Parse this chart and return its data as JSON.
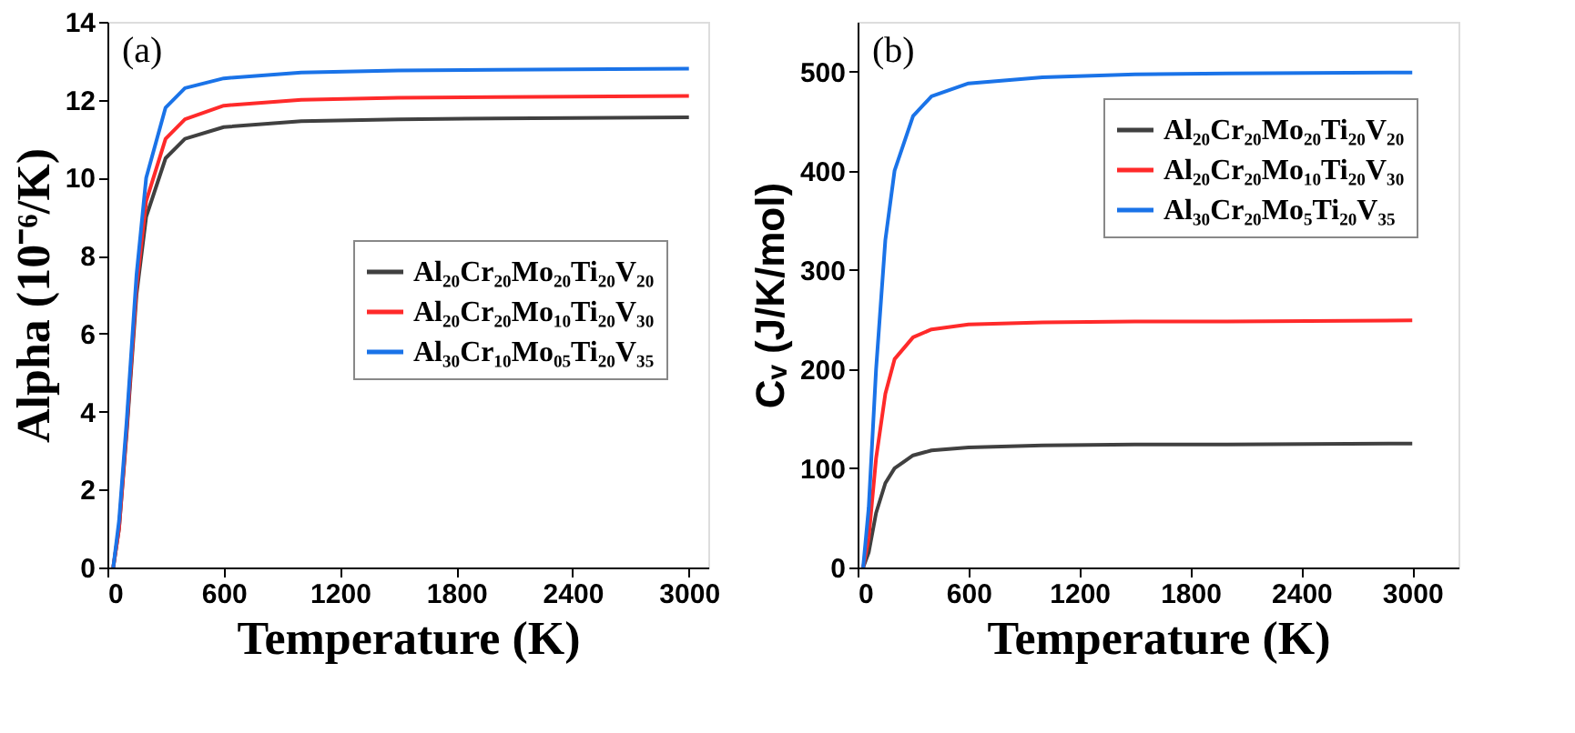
{
  "chart_data": [
    {
      "type": "line",
      "xlabel": "Temperature (K)",
      "ylabel": "Alpha (10⁻⁶/K)",
      "annotations": [
        "(a)"
      ],
      "x": [
        30,
        60,
        100,
        150,
        200,
        300,
        400,
        600,
        1000,
        1500,
        2000,
        3000
      ],
      "xlim": [
        0,
        3100
      ],
      "xticks": [
        0,
        600,
        1200,
        1800,
        2400,
        3000
      ],
      "ylim": [
        0,
        14
      ],
      "yticks": [
        0,
        2,
        4,
        6,
        8,
        10,
        12,
        14
      ],
      "legend": "right",
      "grid": false,
      "marker": "none",
      "line_style": "solid",
      "series": [
        {
          "name": "Al₂₀Cr₂₀Mo₂₀Ti₂₀V₂₀",
          "color": "#404040",
          "values": [
            0,
            1.0,
            3.5,
            7.0,
            9.0,
            10.5,
            11.0,
            11.3,
            11.45,
            11.5,
            11.52,
            11.55
          ]
        },
        {
          "name": "Al₂₀Cr₂₀Mo₁₀Ti₂₀V₃₀",
          "color": "#ff2a2a",
          "values": [
            0,
            1.0,
            3.6,
            7.2,
            9.4,
            11.0,
            11.5,
            11.85,
            12.0,
            12.05,
            12.07,
            12.1
          ]
        },
        {
          "name": "Al₃₀Cr₁₀Mo₀₅Ti₂₀V₃₅",
          "color": "#1a73e8",
          "values": [
            0,
            1.2,
            3.8,
            7.5,
            10.0,
            11.8,
            12.3,
            12.55,
            12.7,
            12.75,
            12.77,
            12.8
          ]
        }
      ]
    },
    {
      "type": "line",
      "xlabel": "Temperature (K)",
      "ylabel": "Cᵥ (J/K/mol)",
      "annotations": [
        "(b)"
      ],
      "x": [
        30,
        60,
        100,
        150,
        200,
        300,
        400,
        600,
        1000,
        1500,
        2000,
        3000
      ],
      "xlim": [
        0,
        3250
      ],
      "xticks": [
        0,
        600,
        1200,
        1800,
        2400,
        3000
      ],
      "ylim": [
        0,
        550
      ],
      "yticks": [
        0,
        100,
        200,
        300,
        400,
        500
      ],
      "legend": "top right",
      "grid": false,
      "marker": "none",
      "line_style": "solid",
      "series": [
        {
          "name": "Al₂₀Cr₂₀Mo₂₀Ti₂₀V₂₀",
          "color": "#404040",
          "values": [
            0,
            15,
            55,
            85,
            100,
            113,
            118,
            121,
            123,
            124,
            124,
            125
          ]
        },
        {
          "name": "Al₂₀Cr₂₀Mo₁₀Ti₂₀V₃₀",
          "color": "#ff2a2a",
          "values": [
            0,
            30,
            110,
            175,
            210,
            232,
            240,
            245,
            247,
            248,
            248,
            249
          ]
        },
        {
          "name": "Al₃₀Cr₂₀Mo₅Ti₂₀V₃₅",
          "color": "#1a73e8",
          "values": [
            0,
            60,
            200,
            330,
            400,
            455,
            475,
            488,
            494,
            497,
            498,
            499
          ]
        }
      ]
    }
  ]
}
